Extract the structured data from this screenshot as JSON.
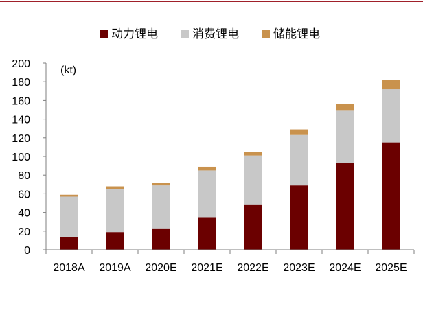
{
  "chart_data": {
    "type": "bar",
    "stacked": true,
    "unit_label": "(kt)",
    "categories": [
      "2018A",
      "2019A",
      "2020E",
      "2021E",
      "2022E",
      "2023E",
      "2024E",
      "2025E"
    ],
    "series": [
      {
        "name": "动力锂电",
        "color": "#6b0000",
        "values": [
          14,
          19,
          23,
          35,
          48,
          69,
          93,
          115
        ]
      },
      {
        "name": "消费锂电",
        "color": "#c8c8c8",
        "values": [
          43,
          46,
          46,
          50,
          53,
          54,
          56,
          57
        ]
      },
      {
        "name": "储能锂电",
        "color": "#c9924d",
        "values": [
          2,
          3,
          3,
          4,
          4,
          6,
          7,
          10
        ]
      }
    ],
    "ylim": [
      0,
      200
    ],
    "yticks": [
      0,
      20,
      40,
      60,
      80,
      100,
      120,
      140,
      160,
      180,
      200
    ],
    "legend_position": "top",
    "grid": false
  }
}
